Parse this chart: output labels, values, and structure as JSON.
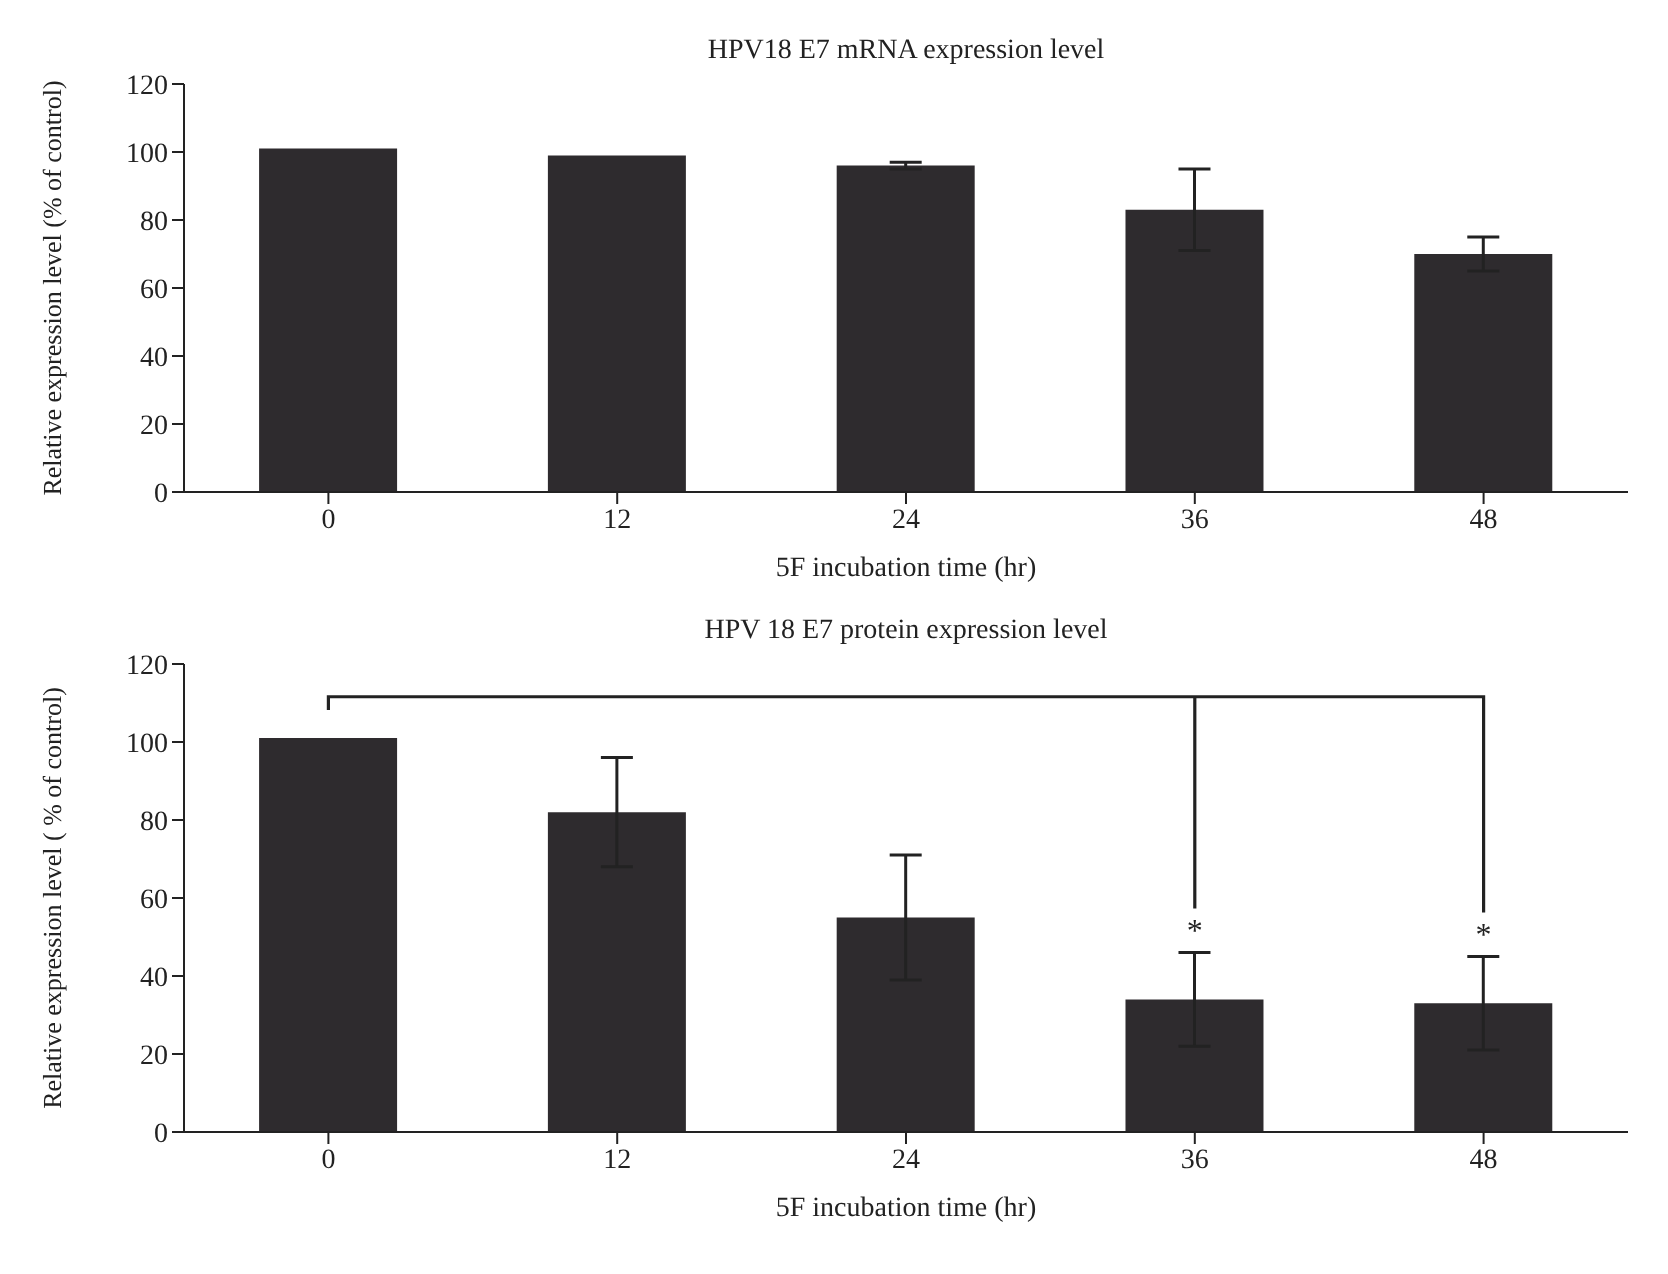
{
  "chart_data": [
    {
      "type": "bar",
      "title": "HPV18 E7 mRNA expression level",
      "xlabel": "5F incubation time (hr)",
      "ylabel": "Relative expression level (% of control)",
      "categories": [
        "0",
        "12",
        "24",
        "36",
        "48"
      ],
      "values": [
        101,
        99,
        96,
        83,
        70
      ],
      "errors": [
        null,
        null,
        1,
        12,
        5
      ],
      "color": "#2e2b2e",
      "ylim": [
        0,
        120
      ],
      "yticks": [
        0,
        20,
        40,
        60,
        80,
        100,
        120
      ],
      "grid": false,
      "legend": false
    },
    {
      "type": "bar",
      "title": "HPV 18 E7 protein expression level",
      "xlabel": "5F incubation time (hr)",
      "ylabel": "Relative expression level ( % of control)",
      "categories": [
        "0",
        "12",
        "24",
        "36",
        "48"
      ],
      "values": [
        101,
        82,
        55,
        34,
        33
      ],
      "errors": [
        null,
        14,
        16,
        12,
        12
      ],
      "color": "#2e2b2e",
      "ylim": [
        0,
        120
      ],
      "yticks": [
        0,
        20,
        40,
        60,
        80,
        100,
        120
      ],
      "grid": false,
      "legend": false,
      "annotations": [
        "*",
        "*"
      ]
    }
  ]
}
